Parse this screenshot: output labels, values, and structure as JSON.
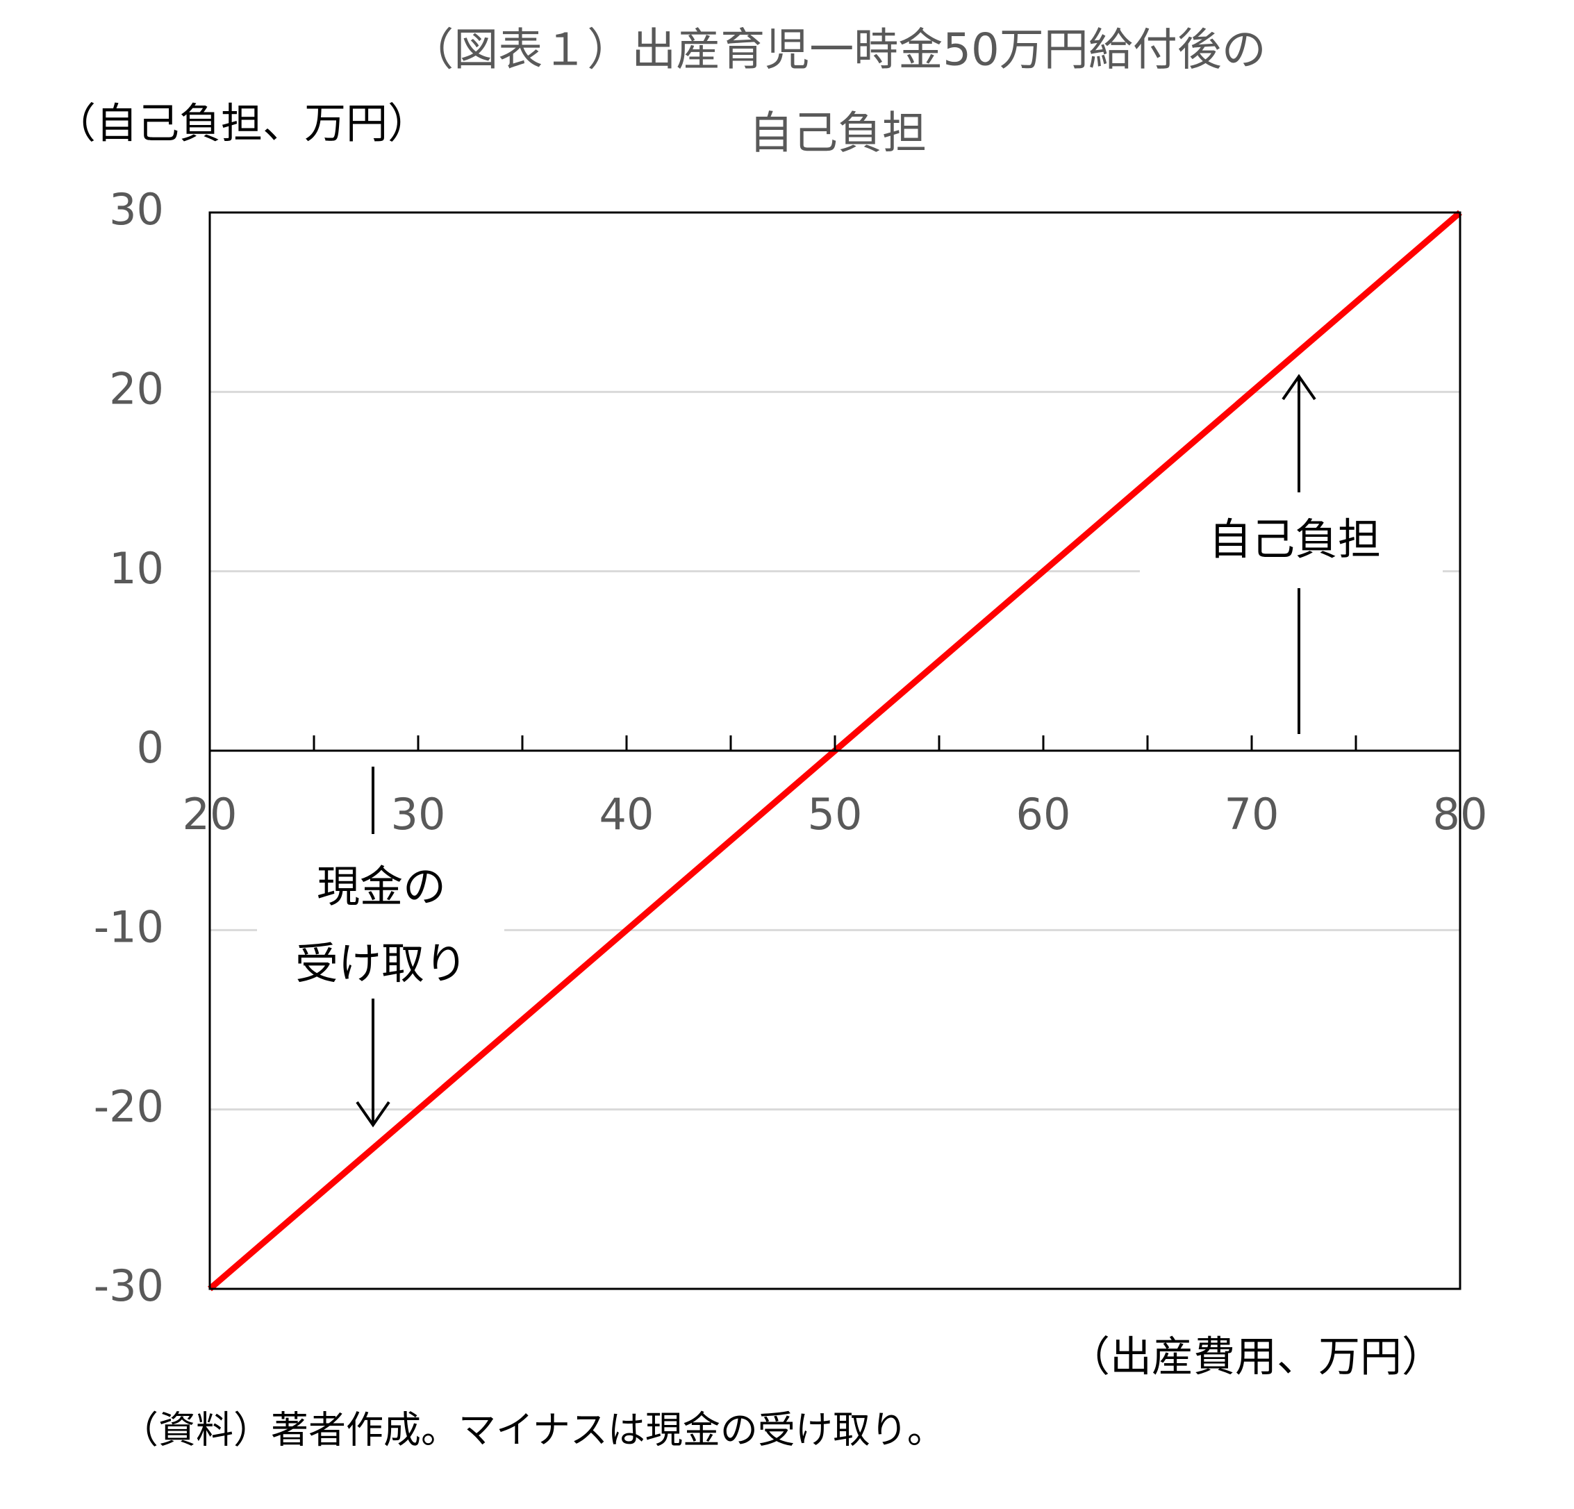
{
  "chart_data": {
    "type": "line",
    "title": "（図表１）出産育児一時金50万円給付後の",
    "subtitle": "自己負担",
    "y_label": "（自己負担、万円）",
    "x_label": "（出産費用、万円）",
    "source": "（資料）著者作成。マイナスは現金の受け取り。",
    "annotations": [
      "自己負担",
      "現金の",
      "受け取り"
    ],
    "x": [
      20,
      80
    ],
    "series": [
      {
        "name": "自己負担",
        "color": "#ff0000",
        "values": [
          -30,
          30
        ]
      }
    ],
    "xlim": [
      20,
      80
    ],
    "xticks": [
      20,
      30,
      40,
      50,
      60,
      70,
      80
    ],
    "xminorticks": [
      25,
      35,
      45,
      55,
      65,
      75
    ],
    "ylim": [
      -30,
      30
    ],
    "yticks": [
      -30,
      -20,
      -10,
      0,
      10,
      20,
      30
    ],
    "grid": true
  }
}
